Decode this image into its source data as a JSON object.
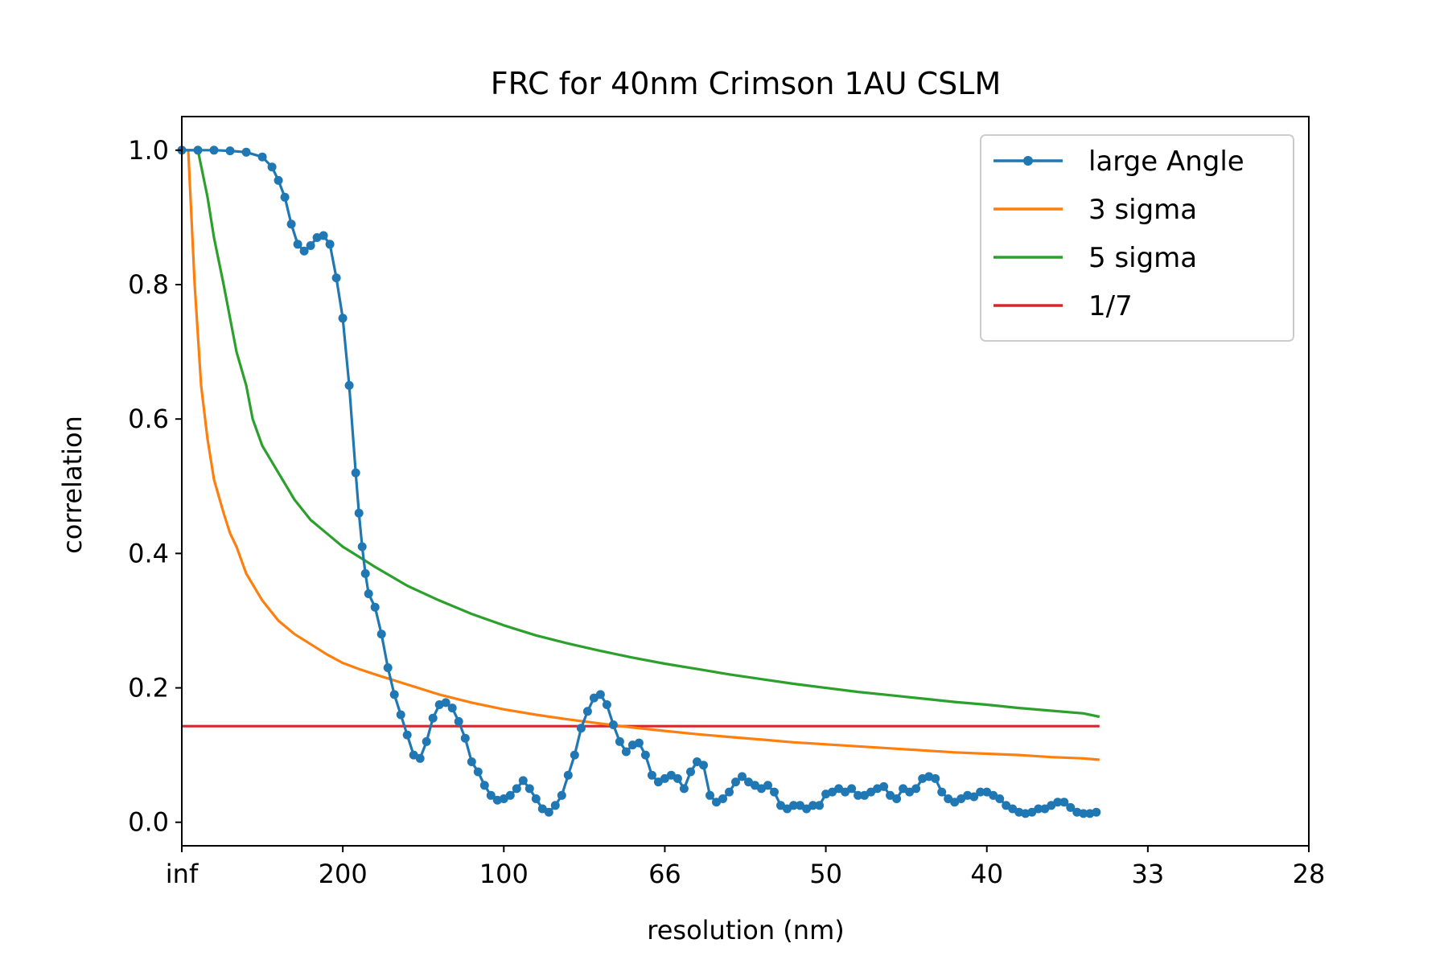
{
  "chart_data": {
    "type": "line",
    "title": "FRC for 40nm Crimson 1AU CSLM",
    "xlabel": "resolution (nm)",
    "ylabel": "correlation",
    "x_ticks": [
      {
        "position": 0.0,
        "label": "inf"
      },
      {
        "position": 0.005,
        "label": "200"
      },
      {
        "position": 0.01,
        "label": "100"
      },
      {
        "position": 0.015,
        "label": "66"
      },
      {
        "position": 0.02,
        "label": "50"
      },
      {
        "position": 0.025,
        "label": "40"
      },
      {
        "position": 0.03,
        "label": "33"
      },
      {
        "position": 0.035,
        "label": "28"
      }
    ],
    "x_units_note": "spatial frequency (1/nm); tick labels show resolution in nm",
    "xlim": [
      0.0,
      0.035
    ],
    "ylim": [
      -0.035,
      1.05
    ],
    "y_ticks": [
      "0.0",
      "0.2",
      "0.4",
      "0.6",
      "0.8",
      "1.0"
    ],
    "y_tick_values": [
      0.0,
      0.2,
      0.4,
      0.6,
      0.8,
      1.0
    ],
    "grid": false,
    "legend_placement": "top-right",
    "series": [
      {
        "name": "large Angle",
        "color": "#1f77b4",
        "marker": "dot",
        "points": [
          [
            0.0,
            1.0
          ],
          [
            0.0005,
            1.0
          ],
          [
            0.001,
            1.0
          ],
          [
            0.0015,
            0.999
          ],
          [
            0.002,
            0.997
          ],
          [
            0.0025,
            0.99
          ],
          [
            0.0028,
            0.975
          ],
          [
            0.003,
            0.955
          ],
          [
            0.0032,
            0.93
          ],
          [
            0.0034,
            0.89
          ],
          [
            0.0036,
            0.86
          ],
          [
            0.0038,
            0.85
          ],
          [
            0.004,
            0.858
          ],
          [
            0.0042,
            0.87
          ],
          [
            0.0044,
            0.873
          ],
          [
            0.0046,
            0.86
          ],
          [
            0.0048,
            0.81
          ],
          [
            0.005,
            0.75
          ],
          [
            0.0052,
            0.65
          ],
          [
            0.0054,
            0.52
          ],
          [
            0.0055,
            0.46
          ],
          [
            0.0056,
            0.41
          ],
          [
            0.0057,
            0.37
          ],
          [
            0.0058,
            0.34
          ],
          [
            0.006,
            0.32
          ],
          [
            0.0062,
            0.28
          ],
          [
            0.0064,
            0.23
          ],
          [
            0.0066,
            0.19
          ],
          [
            0.0068,
            0.16
          ],
          [
            0.007,
            0.13
          ],
          [
            0.0072,
            0.1
          ],
          [
            0.0074,
            0.095
          ],
          [
            0.0076,
            0.12
          ],
          [
            0.0078,
            0.155
          ],
          [
            0.008,
            0.175
          ],
          [
            0.0082,
            0.178
          ],
          [
            0.0084,
            0.17
          ],
          [
            0.0086,
            0.15
          ],
          [
            0.0088,
            0.125
          ],
          [
            0.009,
            0.09
          ],
          [
            0.0092,
            0.075
          ],
          [
            0.0094,
            0.055
          ],
          [
            0.0096,
            0.04
          ],
          [
            0.0098,
            0.033
          ],
          [
            0.01,
            0.035
          ],
          [
            0.0102,
            0.04
          ],
          [
            0.0104,
            0.05
          ],
          [
            0.0106,
            0.062
          ],
          [
            0.0108,
            0.05
          ],
          [
            0.011,
            0.035
          ],
          [
            0.0112,
            0.02
          ],
          [
            0.0114,
            0.015
          ],
          [
            0.0116,
            0.025
          ],
          [
            0.0118,
            0.04
          ],
          [
            0.012,
            0.07
          ],
          [
            0.0122,
            0.1
          ],
          [
            0.0124,
            0.14
          ],
          [
            0.0126,
            0.165
          ],
          [
            0.0128,
            0.185
          ],
          [
            0.013,
            0.19
          ],
          [
            0.0132,
            0.175
          ],
          [
            0.0134,
            0.145
          ],
          [
            0.0136,
            0.12
          ],
          [
            0.0138,
            0.105
          ],
          [
            0.014,
            0.115
          ],
          [
            0.0142,
            0.118
          ],
          [
            0.0144,
            0.1
          ],
          [
            0.0146,
            0.07
          ],
          [
            0.0148,
            0.06
          ],
          [
            0.015,
            0.065
          ],
          [
            0.0152,
            0.07
          ],
          [
            0.0154,
            0.065
          ],
          [
            0.0156,
            0.05
          ],
          [
            0.0158,
            0.075
          ],
          [
            0.016,
            0.09
          ],
          [
            0.0162,
            0.085
          ],
          [
            0.0164,
            0.04
          ],
          [
            0.0166,
            0.03
          ],
          [
            0.0168,
            0.035
          ],
          [
            0.017,
            0.045
          ],
          [
            0.0172,
            0.06
          ],
          [
            0.0174,
            0.068
          ],
          [
            0.0176,
            0.06
          ],
          [
            0.0178,
            0.055
          ],
          [
            0.018,
            0.05
          ],
          [
            0.0182,
            0.055
          ],
          [
            0.0184,
            0.045
          ],
          [
            0.0186,
            0.025
          ],
          [
            0.0188,
            0.02
          ],
          [
            0.019,
            0.025
          ],
          [
            0.0192,
            0.025
          ],
          [
            0.0194,
            0.02
          ],
          [
            0.0196,
            0.025
          ],
          [
            0.0198,
            0.025
          ],
          [
            0.02,
            0.042
          ],
          [
            0.0202,
            0.045
          ],
          [
            0.0204,
            0.05
          ],
          [
            0.0206,
            0.045
          ],
          [
            0.0208,
            0.05
          ],
          [
            0.021,
            0.04
          ],
          [
            0.0212,
            0.04
          ],
          [
            0.0214,
            0.045
          ],
          [
            0.0216,
            0.05
          ],
          [
            0.0218,
            0.053
          ],
          [
            0.022,
            0.04
          ],
          [
            0.0222,
            0.035
          ],
          [
            0.0224,
            0.05
          ],
          [
            0.0226,
            0.045
          ],
          [
            0.0228,
            0.05
          ],
          [
            0.023,
            0.065
          ],
          [
            0.0232,
            0.068
          ],
          [
            0.0234,
            0.065
          ],
          [
            0.0236,
            0.045
          ],
          [
            0.0238,
            0.035
          ],
          [
            0.024,
            0.03
          ],
          [
            0.0242,
            0.035
          ],
          [
            0.0244,
            0.04
          ],
          [
            0.0246,
            0.038
          ],
          [
            0.0248,
            0.045
          ],
          [
            0.025,
            0.045
          ],
          [
            0.0252,
            0.04
          ],
          [
            0.0254,
            0.035
          ],
          [
            0.0256,
            0.025
          ],
          [
            0.0258,
            0.02
          ],
          [
            0.026,
            0.015
          ],
          [
            0.0262,
            0.013
          ],
          [
            0.0264,
            0.015
          ],
          [
            0.0266,
            0.02
          ],
          [
            0.0268,
            0.02
          ],
          [
            0.027,
            0.025
          ],
          [
            0.0272,
            0.03
          ],
          [
            0.0274,
            0.03
          ],
          [
            0.0276,
            0.022
          ],
          [
            0.0278,
            0.015
          ],
          [
            0.028,
            0.013
          ],
          [
            0.0282,
            0.013
          ],
          [
            0.0284,
            0.015
          ]
        ]
      },
      {
        "name": "3 sigma",
        "color": "#ff7f0e",
        "marker": "none",
        "points": [
          [
            0.0002,
            1.0
          ],
          [
            0.0004,
            0.8
          ],
          [
            0.0006,
            0.65
          ],
          [
            0.0008,
            0.57
          ],
          [
            0.001,
            0.51
          ],
          [
            0.0013,
            0.46
          ],
          [
            0.0015,
            0.43
          ],
          [
            0.0017,
            0.41
          ],
          [
            0.002,
            0.37
          ],
          [
            0.0025,
            0.33
          ],
          [
            0.003,
            0.3
          ],
          [
            0.0035,
            0.28
          ],
          [
            0.004,
            0.265
          ],
          [
            0.0045,
            0.25
          ],
          [
            0.005,
            0.237
          ],
          [
            0.0055,
            0.228
          ],
          [
            0.006,
            0.22
          ],
          [
            0.007,
            0.205
          ],
          [
            0.008,
            0.19
          ],
          [
            0.009,
            0.178
          ],
          [
            0.01,
            0.168
          ],
          [
            0.011,
            0.16
          ],
          [
            0.012,
            0.153
          ],
          [
            0.013,
            0.147
          ],
          [
            0.014,
            0.141
          ],
          [
            0.015,
            0.136
          ],
          [
            0.016,
            0.131
          ],
          [
            0.017,
            0.127
          ],
          [
            0.018,
            0.123
          ],
          [
            0.019,
            0.119
          ],
          [
            0.02,
            0.116
          ],
          [
            0.021,
            0.113
          ],
          [
            0.022,
            0.11
          ],
          [
            0.023,
            0.107
          ],
          [
            0.024,
            0.104
          ],
          [
            0.025,
            0.102
          ],
          [
            0.026,
            0.1
          ],
          [
            0.027,
            0.097
          ],
          [
            0.028,
            0.095
          ],
          [
            0.0285,
            0.093
          ]
        ]
      },
      {
        "name": "5 sigma",
        "color": "#2ca02c",
        "marker": "none",
        "points": [
          [
            0.0,
            1.0
          ],
          [
            0.0005,
            1.0
          ],
          [
            0.0008,
            0.93
          ],
          [
            0.001,
            0.87
          ],
          [
            0.0013,
            0.8
          ],
          [
            0.0015,
            0.75
          ],
          [
            0.0017,
            0.7
          ],
          [
            0.002,
            0.65
          ],
          [
            0.0022,
            0.6
          ],
          [
            0.0025,
            0.56
          ],
          [
            0.003,
            0.52
          ],
          [
            0.0035,
            0.48
          ],
          [
            0.004,
            0.45
          ],
          [
            0.0045,
            0.43
          ],
          [
            0.005,
            0.41
          ],
          [
            0.0055,
            0.395
          ],
          [
            0.006,
            0.38
          ],
          [
            0.007,
            0.352
          ],
          [
            0.008,
            0.33
          ],
          [
            0.009,
            0.31
          ],
          [
            0.01,
            0.293
          ],
          [
            0.011,
            0.278
          ],
          [
            0.012,
            0.266
          ],
          [
            0.013,
            0.255
          ],
          [
            0.014,
            0.245
          ],
          [
            0.015,
            0.236
          ],
          [
            0.016,
            0.228
          ],
          [
            0.017,
            0.22
          ],
          [
            0.018,
            0.213
          ],
          [
            0.019,
            0.206
          ],
          [
            0.02,
            0.2
          ],
          [
            0.021,
            0.194
          ],
          [
            0.022,
            0.189
          ],
          [
            0.023,
            0.184
          ],
          [
            0.024,
            0.179
          ],
          [
            0.025,
            0.175
          ],
          [
            0.026,
            0.17
          ],
          [
            0.027,
            0.166
          ],
          [
            0.028,
            0.162
          ],
          [
            0.0285,
            0.157
          ]
        ]
      },
      {
        "name": "1/7",
        "color": "#d62728",
        "marker": "none",
        "points": [
          [
            0.0,
            0.143
          ],
          [
            0.0285,
            0.143
          ]
        ]
      }
    ]
  }
}
